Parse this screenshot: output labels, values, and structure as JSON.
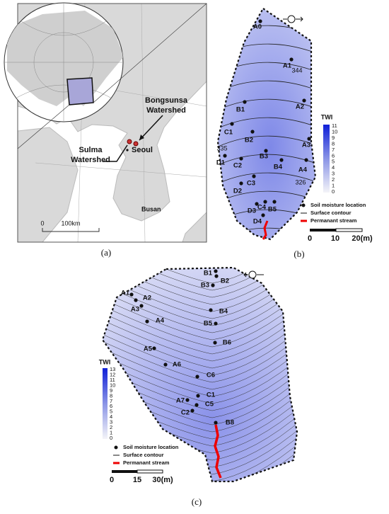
{
  "panel_a": {
    "caption": "(a)",
    "bongsunsa": [
      "Bongsunsa",
      "Watershed"
    ],
    "sulma": [
      "Sulma",
      "Watershed"
    ],
    "cities": [
      "Seoul",
      "Busan"
    ],
    "scale": [
      "0",
      "100km"
    ]
  },
  "panel_b": {
    "caption": "(b)",
    "points": [
      "A0",
      "A1",
      "A2",
      "A3",
      "A4",
      "B1",
      "B2",
      "B3",
      "B4",
      "B5",
      "C1",
      "C2",
      "C3",
      "C4",
      "D1",
      "D2",
      "D3",
      "D4"
    ],
    "contour_labels": [
      "344",
      "335",
      "326"
    ],
    "colorbar_title": "TWI",
    "colorbar_ticks": [
      11,
      10,
      9,
      8,
      7,
      6,
      5,
      4,
      3,
      2,
      1,
      0
    ],
    "legend": [
      "Soil moisture location",
      "Surface contour",
      "Permanant stream"
    ],
    "scale": [
      "0",
      "10",
      "20(m)"
    ]
  },
  "panel_c": {
    "caption": "(c)",
    "points": [
      "A1",
      "A2",
      "A3",
      "A4",
      "A5",
      "A6",
      "A7",
      "B1",
      "B2",
      "B3",
      "B4",
      "B5",
      "B6",
      "B8",
      "C1",
      "C2",
      "C5",
      "C6"
    ],
    "colorbar_title": "TWI",
    "colorbar_ticks": [
      13,
      12,
      11,
      10,
      9,
      8,
      7,
      6,
      5,
      4,
      3,
      2,
      1,
      0
    ],
    "legend": [
      "Soil moisture location",
      "Surface contour",
      "Permanant stream"
    ],
    "scale": [
      "0",
      "15",
      "30(m)"
    ]
  }
}
